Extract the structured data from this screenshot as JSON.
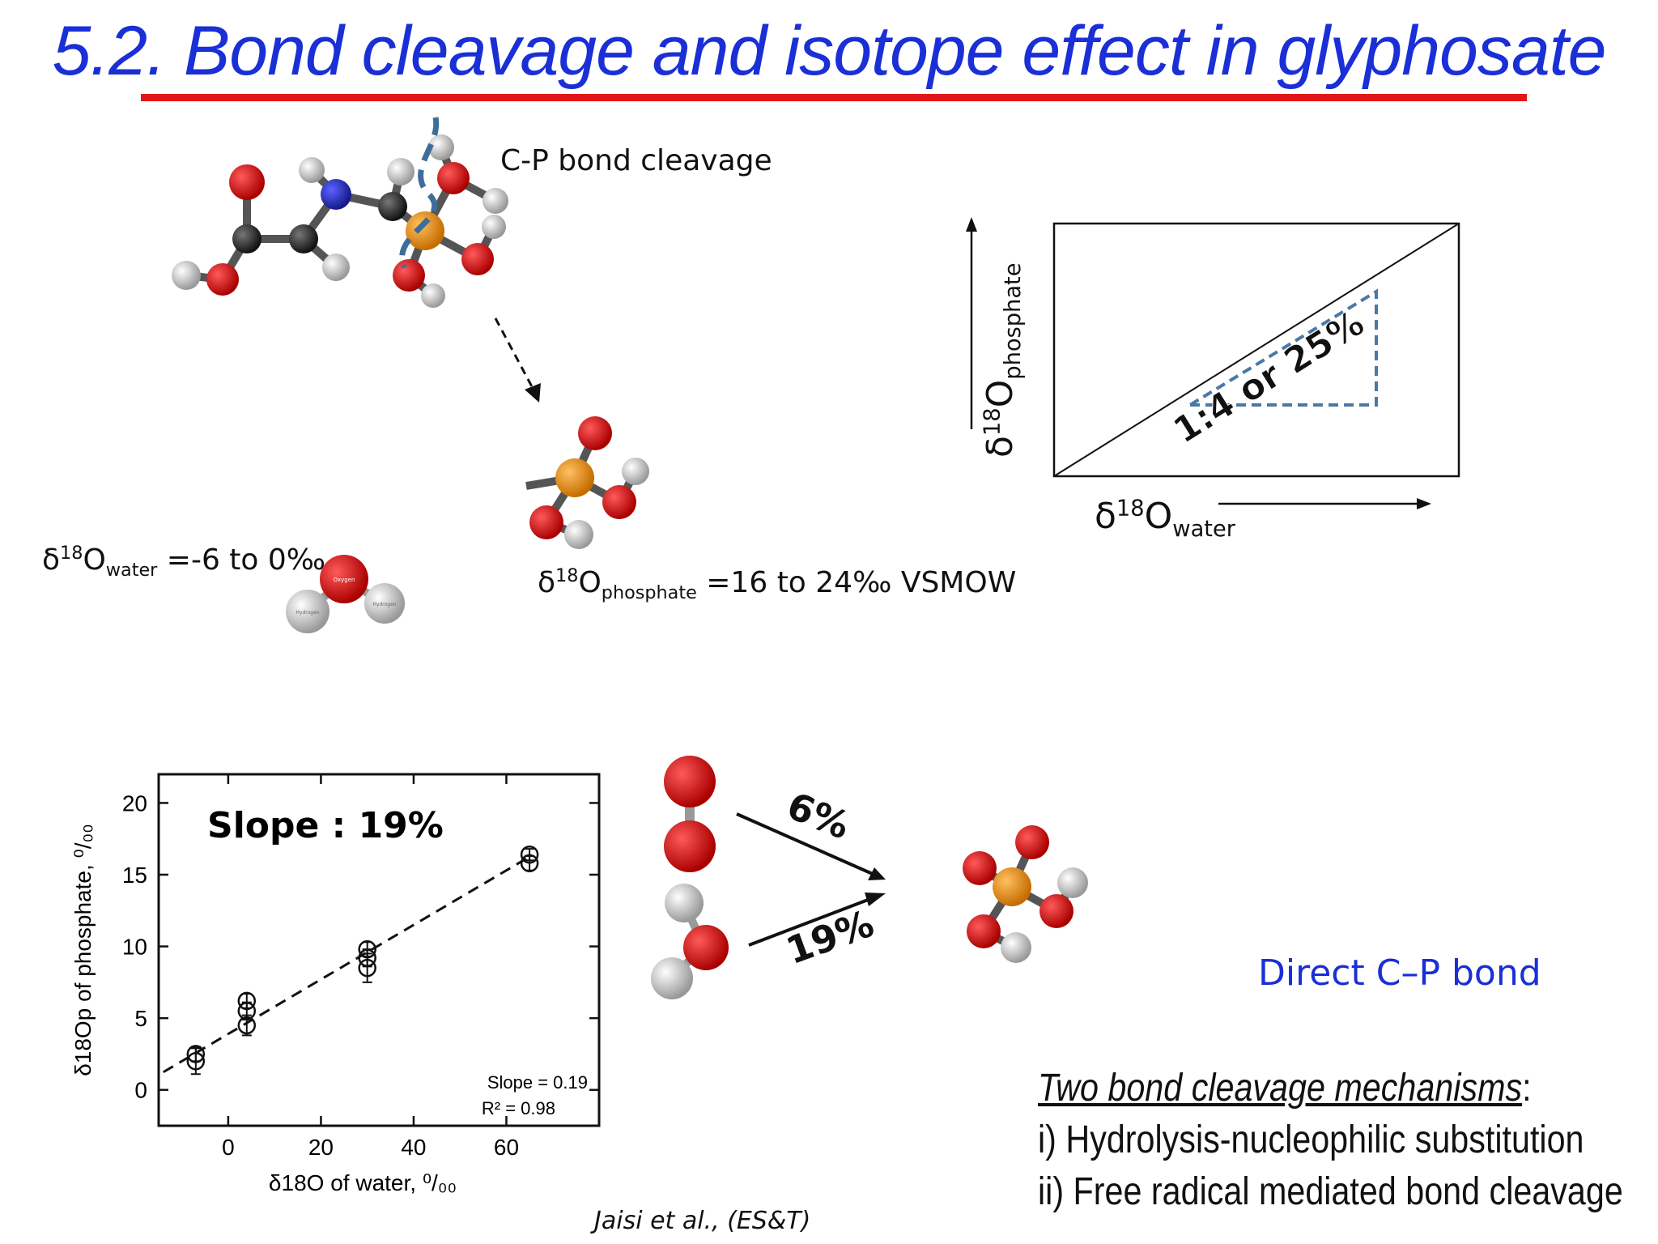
{
  "title": "5.2. Bond cleavage and isotope effect in glyphosate",
  "colors": {
    "title": "#1a2fd6",
    "rule": "#e31616",
    "oxygen": "#cc1111",
    "phosphorus": "#e8901a",
    "nitrogen": "#2630b8",
    "carbon": "#333333",
    "hydrogen": "#e6e6e6",
    "dashed": "#4a78a8"
  },
  "molecule": {
    "cleavage_label": "C-P bond cleavage"
  },
  "water_label": {
    "delta": "δ",
    "mass": "18",
    "element": "O",
    "subscript": "water",
    "value": " =-6 to 0‰"
  },
  "phosphate_label": {
    "delta": "δ",
    "mass": "18",
    "element": "O",
    "subscript": "phosphate",
    "value": " =16 to 24‰ VSMOW"
  },
  "schematic": {
    "diag_label": "1:4 or 25%",
    "x_label": {
      "delta": "δ",
      "mass": "18",
      "element": "O",
      "subscript": "water"
    },
    "y_label": {
      "delta": "δ",
      "mass": "18",
      "element": "O",
      "subscript": "phosphate"
    }
  },
  "water_atom_labels": {
    "oxygen": "Oxygen",
    "hydrogen": "Hydrogen"
  },
  "arrows": {
    "top_label": "6%",
    "bottom_label": "19%"
  },
  "direct_label": "Direct C–P bond",
  "mechanisms": {
    "heading": "Two bond cleavage mechanisms",
    "items": [
      "i) Hydrolysis-nucleophilic substitution",
      "ii) Free radical mediated bond cleavage"
    ]
  },
  "citation": "Jaisi et al., (ES&T)",
  "chart_data": {
    "type": "scatter",
    "overlay_label": "Slope : 19%",
    "xlabel": "δ18O of water, ⁰/₀₀",
    "ylabel": "δ18Op of phosphate, ⁰/₀₀",
    "xlim": [
      -15,
      80
    ],
    "ylim": [
      -2.5,
      22
    ],
    "xticks": [
      0,
      20,
      40,
      60
    ],
    "yticks": [
      0,
      5,
      10,
      15,
      20
    ],
    "points": [
      {
        "x": -7,
        "y": 2.0,
        "err": 0.9
      },
      {
        "x": -7,
        "y": 2.5,
        "err": 0.5
      },
      {
        "x": 4,
        "y": 4.5,
        "err": 0.7
      },
      {
        "x": 4,
        "y": 5.5,
        "err": 0.6
      },
      {
        "x": 4,
        "y": 6.2,
        "err": 0.5
      },
      {
        "x": 30,
        "y": 8.5,
        "err": 1.0
      },
      {
        "x": 30,
        "y": 9.2,
        "err": 0.6
      },
      {
        "x": 30,
        "y": 9.8,
        "err": 0.5
      },
      {
        "x": 65,
        "y": 15.8,
        "err": 0.5
      },
      {
        "x": 65,
        "y": 16.4,
        "err": 0.4
      }
    ],
    "fit": {
      "slope": 0.19,
      "intercept": 3.9,
      "x_range": [
        -14,
        65
      ]
    },
    "stats": {
      "slope_text": "Slope = 0.19",
      "r2_text": "R² = 0.98"
    }
  }
}
